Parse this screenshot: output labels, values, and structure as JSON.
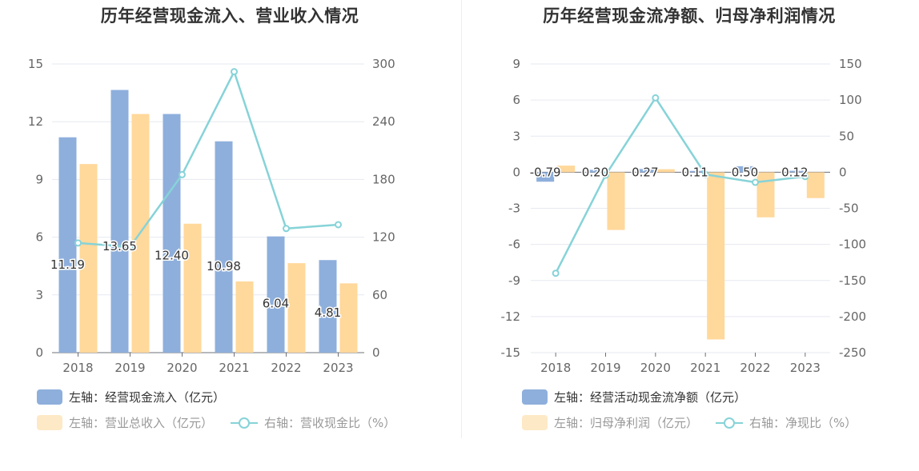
{
  "colors": {
    "bar_primary": "#8eafdc",
    "bar_secondary": "#ffd89b",
    "bar_secondary_legend": "#fde9c6",
    "line": "#86d3d8",
    "grid": "#e6e9f0",
    "axis_text": "#666666",
    "legend_muted": "#999999"
  },
  "chart_data": [
    {
      "type": "bar",
      "title": "历年经营现金流入、营业收入情况",
      "categories": [
        "2018",
        "2019",
        "2020",
        "2021",
        "2022",
        "2023"
      ],
      "y_left": {
        "ticks": [
          0,
          3,
          6,
          9,
          12,
          15
        ],
        "min": 0,
        "max": 15
      },
      "y_right": {
        "ticks": [
          0,
          60,
          120,
          180,
          240,
          300
        ],
        "min": 0,
        "max": 300
      },
      "series": [
        {
          "name": "左轴：经营现金流入（亿元）",
          "type": "bar",
          "axis": "left",
          "values": [
            11.19,
            13.65,
            12.4,
            10.98,
            6.04,
            4.81
          ],
          "labels": [
            "11.19",
            "13.65",
            "12.40",
            "10.98",
            "6.04",
            "4.81"
          ]
        },
        {
          "name": "左轴：营业总收入（亿元）",
          "type": "bar",
          "axis": "left",
          "values": [
            9.8,
            12.4,
            6.7,
            3.7,
            4.65,
            3.6
          ]
        },
        {
          "name": "右轴：营收现金比（%）",
          "type": "line",
          "axis": "right",
          "values": [
            114,
            110,
            185,
            292,
            129,
            133
          ]
        }
      ],
      "legend": [
        "左轴：经营现金流入（亿元）",
        "左轴：营业总收入（亿元）",
        "右轴：营收现金比（%）"
      ],
      "grid": true,
      "legend_position": "bottom"
    },
    {
      "type": "bar",
      "title": "历年经营现金流净额、归母净利润情况",
      "categories": [
        "2018",
        "2019",
        "2020",
        "2021",
        "2022",
        "2023"
      ],
      "y_left": {
        "ticks": [
          -15,
          -12,
          -9,
          -6,
          -3,
          0,
          3,
          6,
          9
        ],
        "min": -15,
        "max": 9
      },
      "y_right": {
        "ticks": [
          -250,
          -200,
          -150,
          -100,
          -50,
          0,
          50,
          100,
          150
        ],
        "min": -250,
        "max": 150
      },
      "series": [
        {
          "name": "左轴：经营活动现金流净额（亿元）",
          "type": "bar",
          "axis": "left",
          "values": [
            -0.79,
            0.2,
            0.27,
            0.11,
            0.5,
            0.12
          ],
          "labels": [
            "-0.79",
            "0.20",
            "0.27",
            "0.11",
            "0.50",
            "0.12"
          ]
        },
        {
          "name": "左轴：归母净利润（亿元）",
          "type": "bar",
          "axis": "left",
          "values": [
            0.55,
            -4.8,
            0.25,
            -13.9,
            -3.75,
            -2.15
          ]
        },
        {
          "name": "右轴：净现比（%）",
          "type": "line",
          "axis": "right",
          "values": [
            -140,
            -4,
            103,
            -3,
            -14,
            -6
          ]
        }
      ],
      "legend": [
        "左轴：经营活动现金流净额（亿元）",
        "左轴：归母净利润（亿元）",
        "右轴：净现比（%）"
      ],
      "grid": true,
      "legend_position": "bottom"
    }
  ]
}
